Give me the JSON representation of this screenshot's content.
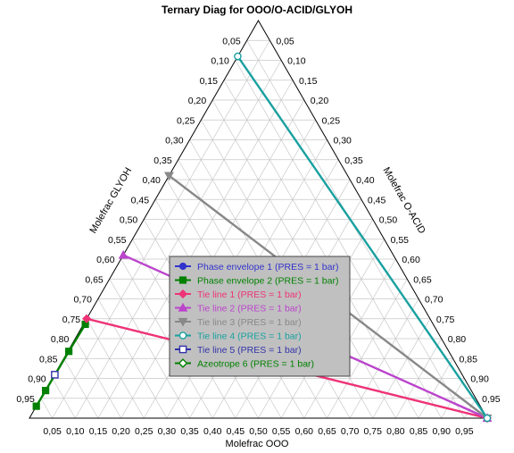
{
  "chart_data": {
    "type": "ternary",
    "title": "Ternary Diag for OOO/O-ACID/GLYOH",
    "axes": {
      "bottom": "Molefrac OOO",
      "right": "Molefrac O-ACID",
      "left": "Molefrac GLYOH"
    },
    "ticks": [
      "0,05",
      "0,10",
      "0,15",
      "0,20",
      "0,25",
      "0,30",
      "0,35",
      "0,40",
      "0,45",
      "0,50",
      "0,55",
      "0,60",
      "0,65",
      "0,70",
      "0,75",
      "0,80",
      "0,85",
      "0,90",
      "0,95"
    ],
    "grid": true,
    "legend_position": "center",
    "series": [
      {
        "name": "Phase envelope 1 (PRES = 1  bar)",
        "color": "#3333cc",
        "marker": "circle-filled",
        "points": []
      },
      {
        "name": "Phase envelope 2 (PRES = 1  bar)",
        "color": "#008000",
        "marker": "square-filled",
        "points": [
          {
            "ooo": 0.0,
            "glyoh": 0.97
          },
          {
            "ooo": 0.0006,
            "glyoh": 0.93
          },
          {
            "ooo": 0.002,
            "glyoh": 0.83
          },
          {
            "ooo": 0.004,
            "glyoh": 0.76
          }
        ]
      },
      {
        "name": "Tie line 1 (PRES = 1  bar)",
        "color": "#ee3377",
        "marker": "diamond-filled",
        "points": [
          {
            "ooo": 0.0,
            "glyoh": 0.75
          },
          {
            "ooo": 1.0,
            "glyoh": 0.0
          }
        ]
      },
      {
        "name": "Tie line 2 (PRES = 1  bar)",
        "color": "#bb44cc",
        "marker": "triangle-up-filled",
        "points": [
          {
            "ooo": 0.0,
            "glyoh": 0.59
          },
          {
            "ooo": 1.0,
            "glyoh": 0.0
          }
        ]
      },
      {
        "name": "Tie line 3 (PRES = 1  bar)",
        "color": "#888888",
        "marker": "triangle-down-filled",
        "points": [
          {
            "ooo": 0.0,
            "glyoh": 0.39
          },
          {
            "ooo": 1.0,
            "glyoh": 0.0
          }
        ]
      },
      {
        "name": "Tie line 4 (PRES = 1  bar)",
        "color": "#1aa0a0",
        "marker": "circle-open",
        "points": [
          {
            "ooo": 0.0,
            "glyoh": 0.09
          },
          {
            "ooo": 1.0,
            "glyoh": 0.0
          }
        ]
      },
      {
        "name": "Tie line 5 (PRES = 1  bar)",
        "color": "#3333aa",
        "marker": "square-open",
        "points": [
          {
            "ooo": 0.0007,
            "glyoh": 0.89
          }
        ]
      },
      {
        "name": "Azeotrope 6 (PRES = 1  bar)",
        "color": "#008000",
        "marker": "diamond-open",
        "points": []
      }
    ]
  }
}
